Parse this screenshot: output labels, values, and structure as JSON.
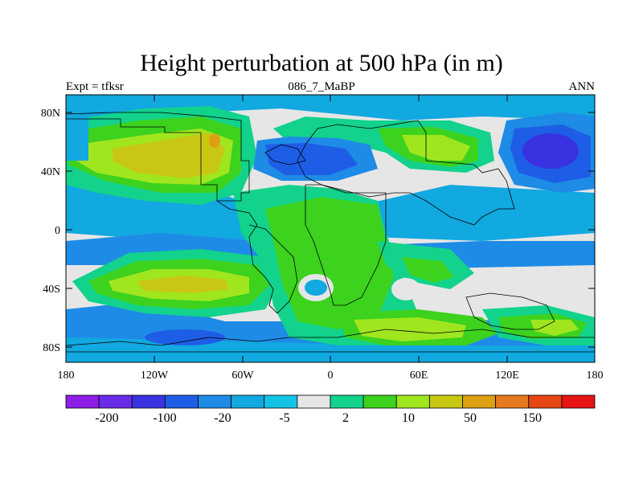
{
  "plot": {
    "title": "Height perturbation at 500 hPa (in m)",
    "left_label": "Expt = tfksr",
    "center_label": "086_7_MaBP",
    "right_label": "ANN"
  },
  "axes": {
    "lat_ticks": [
      "80N",
      "40N",
      "0",
      "40S",
      "80S"
    ],
    "lon_ticks": [
      "180",
      "120W",
      "60W",
      "0",
      "60E",
      "120E",
      "180"
    ]
  },
  "colorbar": {
    "colors": [
      "#8c1ee6",
      "#6a2be8",
      "#3a32e0",
      "#1e5de6",
      "#1e8be6",
      "#12a8e0",
      "#12c3e6",
      "#e6e6e6",
      "#12d28c",
      "#3cd21e",
      "#a0e61e",
      "#c8c814",
      "#dca012",
      "#e6781e",
      "#e64614",
      "#e61414"
    ],
    "labels": [
      "-200",
      "-100",
      "-20",
      "-5",
      "2",
      "10",
      "50",
      "150"
    ]
  },
  "map": {
    "background": "#e6e6e6"
  }
}
